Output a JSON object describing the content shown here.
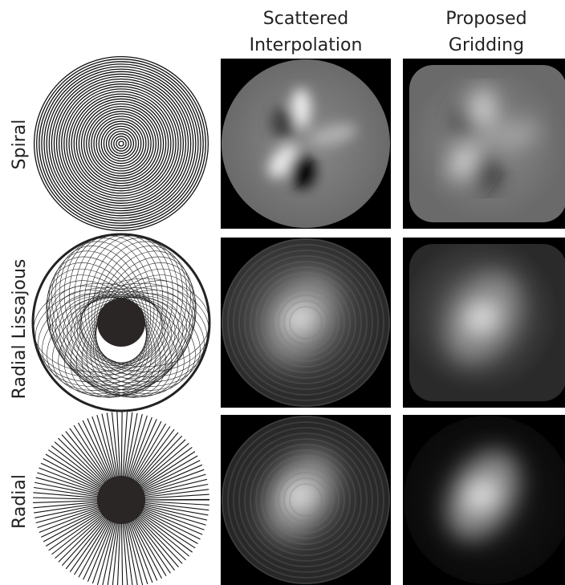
{
  "columns": [
    {
      "lines": [
        "Scattered",
        "Interpolation"
      ]
    },
    {
      "lines": [
        "Proposed",
        "Gridding"
      ]
    }
  ],
  "rows": [
    "Spiral",
    "Radial Lissajous",
    "Radial"
  ]
}
